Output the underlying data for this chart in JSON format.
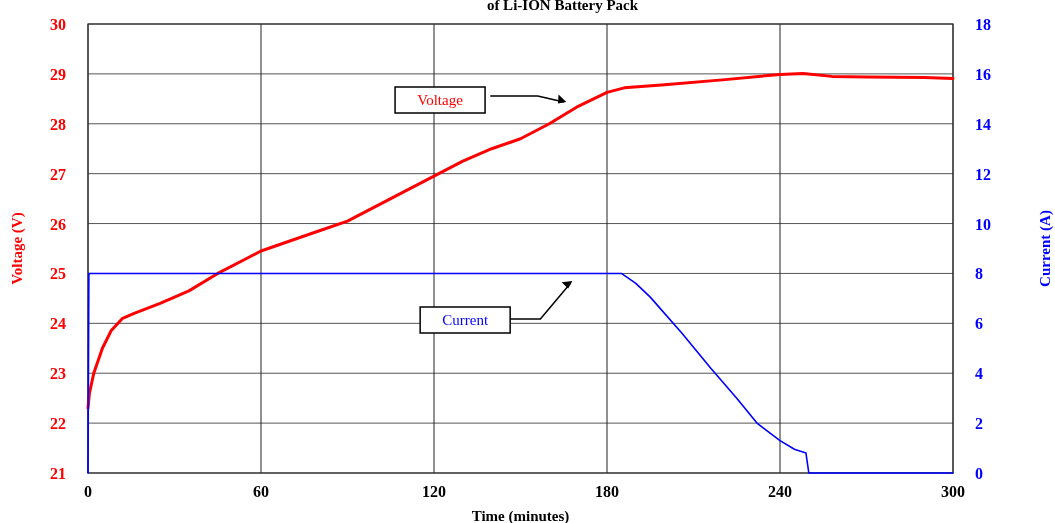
{
  "chart_data": {
    "type": "line",
    "title": "of Li-ION Battery Pack",
    "xlabel": "Time (minutes)",
    "ylabel": "Voltage (V)",
    "y2label": "Current (A)",
    "xlim": [
      0,
      300
    ],
    "xticks": [
      0,
      60,
      120,
      180,
      240,
      300
    ],
    "ylim": [
      21,
      30
    ],
    "yticks": [
      21,
      22,
      23,
      24,
      25,
      26,
      27,
      28,
      29,
      30
    ],
    "y2lim": [
      0,
      18
    ],
    "y2ticks": [
      0,
      2,
      4,
      6,
      8,
      10,
      12,
      14,
      16,
      18
    ],
    "grid": true,
    "series": [
      {
        "name": "Voltage",
        "color": "#ff0000",
        "x": [
          0,
          0.5,
          2,
          5,
          8,
          12,
          16,
          25,
          35,
          45,
          55,
          60,
          70,
          80,
          90,
          100,
          110,
          120,
          130,
          140,
          150,
          160,
          170,
          180,
          186,
          200,
          220,
          240,
          248,
          258,
          270,
          290,
          300
        ],
        "values": [
          22.3,
          22.6,
          23.0,
          23.5,
          23.85,
          24.1,
          24.2,
          24.4,
          24.65,
          25.0,
          25.3,
          25.45,
          25.65,
          25.85,
          26.05,
          26.35,
          26.65,
          26.95,
          27.25,
          27.5,
          27.7,
          28.0,
          28.35,
          28.63,
          28.72,
          28.78,
          28.88,
          28.99,
          29.01,
          28.95,
          28.94,
          28.93,
          28.91
        ]
      },
      {
        "name": "Current",
        "color": "#0000ff",
        "axis": "y2",
        "x": [
          0,
          0.3,
          185,
          190,
          195,
          206,
          216,
          225,
          232,
          240,
          245,
          249,
          250,
          300
        ],
        "values": [
          0,
          8,
          8,
          7.6,
          7.05,
          5.6,
          4.2,
          3.0,
          2.0,
          1.3,
          0.95,
          0.8,
          0,
          0
        ]
      }
    ]
  }
}
